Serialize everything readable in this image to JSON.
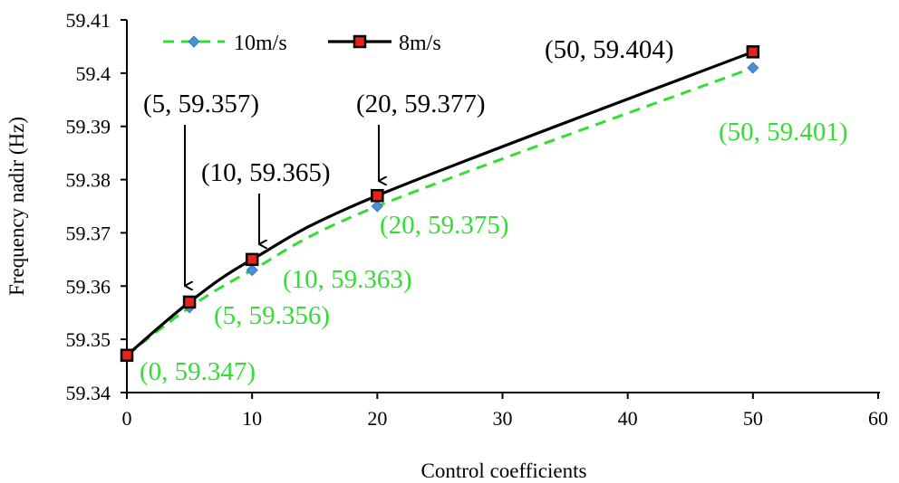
{
  "chart_data": {
    "type": "line",
    "title": "",
    "xlabel": "Control coefficients",
    "ylabel": "Frequency nadir (Hz)",
    "xlim": [
      0,
      60
    ],
    "ylim": [
      59.34,
      59.41
    ],
    "xticks": [
      0,
      10,
      20,
      30,
      40,
      50,
      60
    ],
    "yticks": [
      59.34,
      59.35,
      59.36,
      59.37,
      59.38,
      59.39,
      59.4,
      59.41
    ],
    "xtick_labels": [
      "0",
      "10",
      "20",
      "30",
      "40",
      "50",
      "60"
    ],
    "ytick_labels": [
      "59.34",
      "59.35",
      "59.36",
      "59.37",
      "59.38",
      "59.39",
      "59.4",
      "59.41"
    ],
    "legend_position": "top-left",
    "series": [
      {
        "name": "10m/s",
        "line_style": "dashed",
        "marker": "diamond",
        "line_color": "#33dd33",
        "marker_color": "#4a90d9",
        "x": [
          0,
          5,
          10,
          20,
          50
        ],
        "values": [
          59.347,
          59.356,
          59.363,
          59.375,
          59.401
        ]
      },
      {
        "name": "8m/s",
        "line_style": "solid",
        "marker": "square",
        "line_color": "#000000",
        "marker_color": "#e8231c",
        "x": [
          0,
          5,
          10,
          20,
          50
        ],
        "values": [
          59.347,
          59.357,
          59.365,
          59.377,
          59.404
        ]
      }
    ],
    "annotations": [
      {
        "text": "(5, 59.357)",
        "series": "8m/s",
        "x": 5,
        "y": 59.357,
        "arrow": true
      },
      {
        "text": "(10, 59.365)",
        "series": "8m/s",
        "x": 10,
        "y": 59.365,
        "arrow": true
      },
      {
        "text": "(20, 59.377)",
        "series": "8m/s",
        "x": 20,
        "y": 59.377,
        "arrow": true
      },
      {
        "text": "(50, 59.404)",
        "series": "8m/s",
        "x": 50,
        "y": 59.404,
        "arrow": false
      },
      {
        "text": "(0, 59.347)",
        "series": "10m/s",
        "x": 0,
        "y": 59.347,
        "arrow": false
      },
      {
        "text": "(5, 59.356)",
        "series": "10m/s",
        "x": 5,
        "y": 59.356,
        "arrow": false
      },
      {
        "text": "(10, 59.363)",
        "series": "10m/s",
        "x": 10,
        "y": 59.363,
        "arrow": false
      },
      {
        "text": "(20, 59.375)",
        "series": "10m/s",
        "x": 20,
        "y": 59.375,
        "arrow": false
      },
      {
        "text": "(50, 59.401)",
        "series": "10m/s",
        "x": 50,
        "y": 59.401,
        "arrow": false
      }
    ]
  }
}
